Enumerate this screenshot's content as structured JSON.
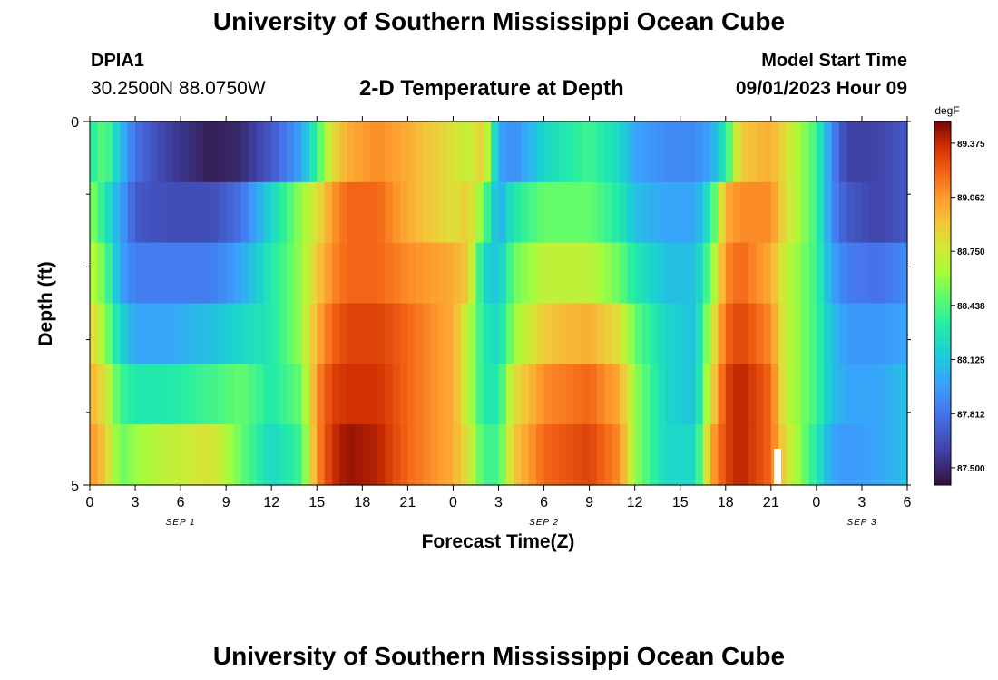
{
  "page": {
    "title": "University of Southern Mississippi Ocean Cube",
    "station_id": "DPIA1",
    "coordinates": "30.2500N  88.0750W",
    "subtitle": "2-D Temperature at Depth",
    "model_start_label": "Model Start Time",
    "model_start_value": "09/01/2023 Hour 09",
    "bottom_title": "University of Southern Mississippi Ocean Cube"
  },
  "chart_data": {
    "type": "heatmap",
    "title": "2-D Temperature at Depth",
    "xlabel": "Forecast Time(Z)",
    "ylabel": "Depth (ft)",
    "colorbar_label": "degF",
    "colorbar_ticks": [
      "87.500",
      "87.812",
      "88.125",
      "88.438",
      "88.750",
      "89.062",
      "89.375"
    ],
    "color_range": [
      87.4,
      89.5
    ],
    "x_tick_labels": [
      "0",
      "3",
      "6",
      "9",
      "12",
      "15",
      "18",
      "21",
      "0",
      "3",
      "6",
      "9",
      "12",
      "15",
      "18",
      "21",
      "0",
      "3",
      "6"
    ],
    "day_labels": [
      {
        "label": "SEP 1",
        "hour": 6
      },
      {
        "label": "SEP 2",
        "hour": 30
      },
      {
        "label": "SEP 3",
        "hour": 51
      }
    ],
    "x_range_hours": [
      0,
      54
    ],
    "y_tick_labels": [
      "0",
      "5"
    ],
    "depth_range_ft": [
      0,
      5
    ],
    "depth_levels_ft": [
      0,
      1,
      2,
      3,
      4,
      5
    ],
    "key_hours": [
      0,
      1,
      2,
      3,
      5,
      8,
      10,
      12,
      14,
      15,
      16,
      17,
      19,
      21,
      24,
      25,
      26,
      27,
      28,
      30,
      33,
      35,
      36,
      38,
      40,
      41,
      42,
      43,
      45,
      46,
      48,
      49,
      50,
      52,
      54
    ],
    "temperature_degF_by_depth": [
      [
        88.3,
        88.5,
        88.1,
        87.8,
        87.6,
        87.45,
        87.5,
        87.7,
        88.0,
        88.4,
        88.8,
        89.0,
        89.1,
        89.0,
        88.8,
        88.7,
        88.9,
        88.0,
        87.9,
        88.2,
        88.4,
        88.2,
        88.0,
        87.9,
        87.9,
        88.0,
        88.3,
        88.9,
        89.0,
        88.8,
        88.4,
        87.9,
        87.6,
        87.6,
        87.7
      ],
      [
        88.6,
        88.3,
        88.0,
        87.7,
        87.65,
        87.65,
        87.8,
        88.2,
        88.6,
        88.8,
        89.05,
        89.2,
        89.2,
        89.0,
        88.8,
        88.9,
        88.5,
        88.0,
        88.3,
        88.5,
        88.5,
        88.3,
        88.1,
        88.0,
        88.0,
        88.3,
        89.0,
        89.1,
        89.1,
        88.8,
        88.4,
        87.9,
        87.7,
        87.6,
        87.7
      ],
      [
        88.7,
        88.5,
        88.0,
        87.85,
        87.85,
        87.85,
        88.0,
        88.3,
        88.6,
        88.9,
        89.1,
        89.2,
        89.2,
        89.1,
        89.0,
        88.9,
        88.2,
        88.1,
        88.5,
        88.7,
        88.7,
        88.5,
        88.3,
        88.1,
        88.1,
        88.5,
        89.1,
        89.2,
        89.0,
        88.7,
        88.4,
        88.0,
        87.85,
        87.8,
        87.9
      ],
      [
        88.9,
        88.6,
        88.2,
        88.0,
        88.0,
        88.1,
        88.2,
        88.3,
        88.6,
        89.0,
        89.2,
        89.3,
        89.3,
        89.2,
        89.0,
        88.7,
        88.3,
        88.2,
        88.6,
        88.9,
        89.0,
        88.8,
        88.5,
        88.2,
        88.1,
        88.7,
        89.2,
        89.3,
        89.1,
        88.7,
        88.4,
        88.1,
        87.95,
        87.95,
        88.0
      ],
      [
        89.0,
        88.8,
        88.4,
        88.3,
        88.3,
        88.4,
        88.5,
        88.3,
        88.5,
        89.1,
        89.3,
        89.35,
        89.35,
        89.2,
        89.0,
        88.7,
        88.3,
        88.3,
        88.8,
        89.1,
        89.2,
        89.0,
        88.6,
        88.2,
        88.1,
        88.8,
        89.3,
        89.4,
        89.2,
        88.7,
        88.4,
        88.1,
        88.0,
        88.0,
        88.1
      ],
      [
        89.1,
        88.9,
        88.5,
        88.6,
        88.7,
        88.8,
        88.5,
        88.2,
        88.4,
        89.1,
        89.35,
        89.45,
        89.4,
        89.2,
        89.0,
        88.8,
        88.4,
        88.4,
        88.9,
        89.2,
        89.3,
        89.1,
        88.6,
        88.2,
        88.2,
        89.0,
        89.3,
        89.4,
        89.2,
        88.8,
        88.3,
        88.0,
        87.95,
        88.0,
        88.1
      ]
    ],
    "grid": false
  }
}
